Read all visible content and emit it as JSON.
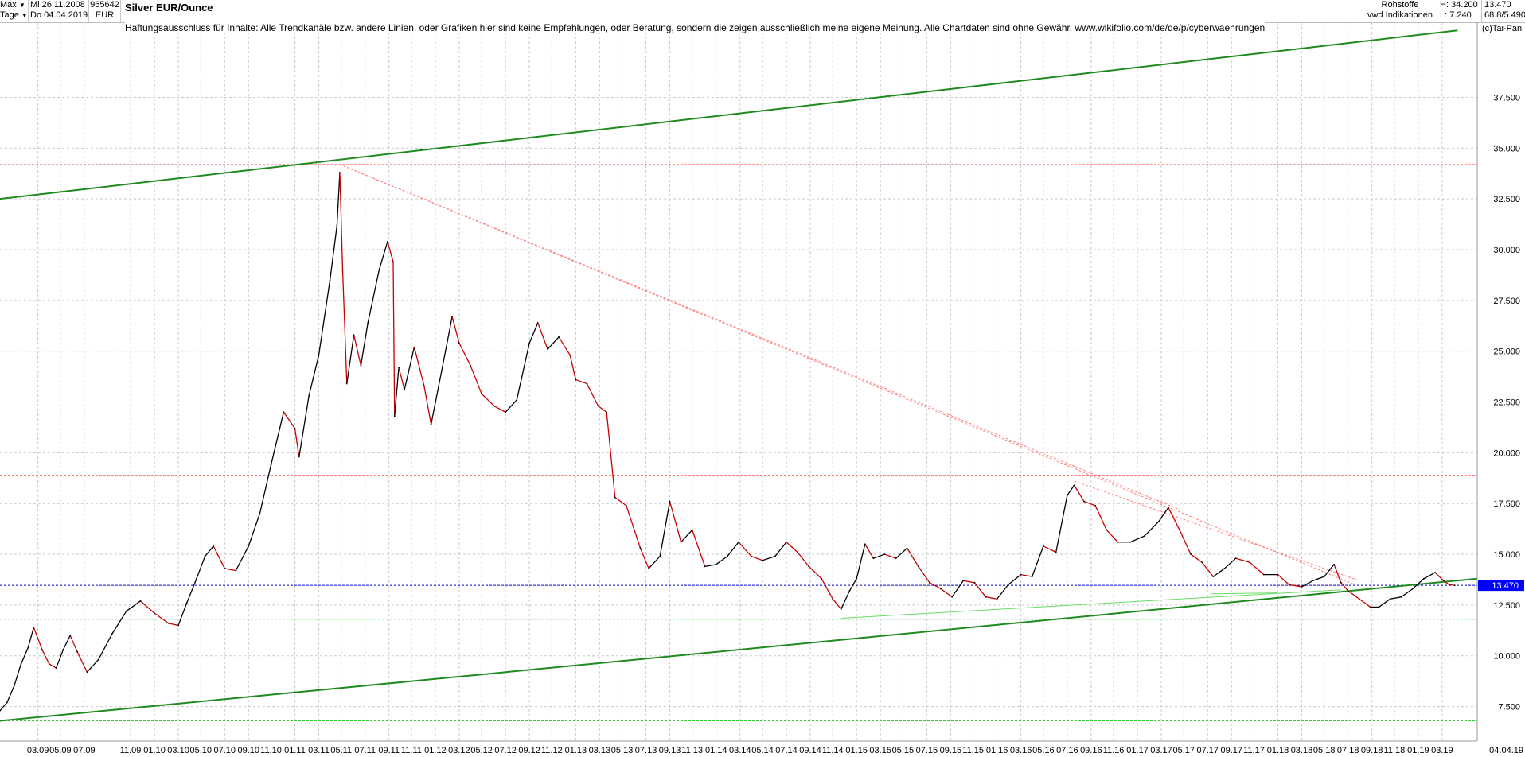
{
  "toolbar": {
    "range_select": "Max",
    "interval_select": "Tage",
    "date_start": "Mi 26.11.2008",
    "date_end": "Do 04.04.2019",
    "wkn": "965642",
    "currency": "EUR",
    "category": "Rohstoffe",
    "source": "vwd Indikationen",
    "high": "H: 34.200",
    "low": "L: 7.240",
    "last": "13.470",
    "performance": "68.8/5.490"
  },
  "header": {
    "title": "Silver EUR/Ounce",
    "disclaimer": "Haftungsausschluss für Inhalte: Alle Trendkanäle bzw. andere Linien, oder Grafiken hier sind keine Empfehlungen, oder Beratung, sondern die zeigen ausschließlich meine eigene Meinung. Alle Chartdaten sind ohne Gewähr.  www.wikifolio.com/de/de/p/cyberwaehrungen",
    "copyright": "(c)Tai-Pan"
  },
  "chart_data": {
    "type": "line",
    "title": "Silver EUR/Ounce",
    "ylim": [
      5.8,
      41.2
    ],
    "xlim": [
      2008.9,
      2019.42
    ],
    "grid": true,
    "y_ticks": [
      "7.500",
      "10.000",
      "12.500",
      "15.000",
      "17.500",
      "20.000",
      "22.500",
      "25.000",
      "27.500",
      "30.000",
      "32.500",
      "35.000",
      "37.500"
    ],
    "x_ticks": [
      {
        "x": 2009.17,
        "label": "03.09"
      },
      {
        "x": 2009.33,
        "label": "05.09"
      },
      {
        "x": 2009.5,
        "label": "07.09"
      },
      {
        "x": 2009.83,
        "label": "11.09"
      },
      {
        "x": 2010.0,
        "label": "01.10"
      },
      {
        "x": 2010.17,
        "label": "03.10"
      },
      {
        "x": 2010.33,
        "label": "05.10"
      },
      {
        "x": 2010.5,
        "label": "07.10"
      },
      {
        "x": 2010.67,
        "label": "09.10"
      },
      {
        "x": 2010.83,
        "label": "11.10"
      },
      {
        "x": 2011.0,
        "label": "01.11"
      },
      {
        "x": 2011.17,
        "label": "03.11"
      },
      {
        "x": 2011.33,
        "label": "05.11"
      },
      {
        "x": 2011.5,
        "label": "07.11"
      },
      {
        "x": 2011.67,
        "label": "09.11"
      },
      {
        "x": 2011.83,
        "label": "11.11"
      },
      {
        "x": 2012.0,
        "label": "01.12"
      },
      {
        "x": 2012.17,
        "label": "03.12"
      },
      {
        "x": 2012.33,
        "label": "05.12"
      },
      {
        "x": 2012.5,
        "label": "07.12"
      },
      {
        "x": 2012.67,
        "label": "09.12"
      },
      {
        "x": 2012.83,
        "label": "11.12"
      },
      {
        "x": 2013.0,
        "label": "01.13"
      },
      {
        "x": 2013.17,
        "label": "03.13"
      },
      {
        "x": 2013.33,
        "label": "05.13"
      },
      {
        "x": 2013.5,
        "label": "07.13"
      },
      {
        "x": 2013.67,
        "label": "09.13"
      },
      {
        "x": 2013.83,
        "label": "11.13"
      },
      {
        "x": 2014.0,
        "label": "01.14"
      },
      {
        "x": 2014.17,
        "label": "03.14"
      },
      {
        "x": 2014.33,
        "label": "05.14"
      },
      {
        "x": 2014.5,
        "label": "07.14"
      },
      {
        "x": 2014.67,
        "label": "09.14"
      },
      {
        "x": 2014.83,
        "label": "11.14"
      },
      {
        "x": 2015.0,
        "label": "01.15"
      },
      {
        "x": 2015.17,
        "label": "03.15"
      },
      {
        "x": 2015.33,
        "label": "05.15"
      },
      {
        "x": 2015.5,
        "label": "07.15"
      },
      {
        "x": 2015.67,
        "label": "09.15"
      },
      {
        "x": 2015.83,
        "label": "11.15"
      },
      {
        "x": 2016.0,
        "label": "01.16"
      },
      {
        "x": 2016.17,
        "label": "03.16"
      },
      {
        "x": 2016.33,
        "label": "05.16"
      },
      {
        "x": 2016.5,
        "label": "07.16"
      },
      {
        "x": 2016.67,
        "label": "09.16"
      },
      {
        "x": 2016.83,
        "label": "11.16"
      },
      {
        "x": 2017.0,
        "label": "01.17"
      },
      {
        "x": 2017.17,
        "label": "03.17"
      },
      {
        "x": 2017.33,
        "label": "05.17"
      },
      {
        "x": 2017.5,
        "label": "07.17"
      },
      {
        "x": 2017.67,
        "label": "09.17"
      },
      {
        "x": 2017.83,
        "label": "11.17"
      },
      {
        "x": 2018.0,
        "label": "01.18"
      },
      {
        "x": 2018.17,
        "label": "03.18"
      },
      {
        "x": 2018.33,
        "label": "05.18"
      },
      {
        "x": 2018.5,
        "label": "07.18"
      },
      {
        "x": 2018.67,
        "label": "09.18"
      },
      {
        "x": 2018.83,
        "label": "11.18"
      },
      {
        "x": 2019.0,
        "label": "01.19"
      },
      {
        "x": 2019.17,
        "label": "03.19"
      }
    ],
    "x_end_label": "04.04.19",
    "last_price_label": "13.470",
    "series": [
      {
        "values": [
          {
            "x": 2008.9,
            "y": 7.3
          },
          {
            "x": 2008.95,
            "y": 7.7
          },
          {
            "x": 2009.0,
            "y": 8.5
          },
          {
            "x": 2009.05,
            "y": 9.6
          },
          {
            "x": 2009.1,
            "y": 10.4
          },
          {
            "x": 2009.14,
            "y": 11.4
          },
          {
            "x": 2009.2,
            "y": 10.3
          },
          {
            "x": 2009.25,
            "y": 9.6
          },
          {
            "x": 2009.3,
            "y": 9.4
          },
          {
            "x": 2009.35,
            "y": 10.3
          },
          {
            "x": 2009.4,
            "y": 11.0
          },
          {
            "x": 2009.45,
            "y": 10.2
          },
          {
            "x": 2009.52,
            "y": 9.2
          },
          {
            "x": 2009.6,
            "y": 9.8
          },
          {
            "x": 2009.7,
            "y": 11.1
          },
          {
            "x": 2009.8,
            "y": 12.2
          },
          {
            "x": 2009.9,
            "y": 12.7
          },
          {
            "x": 2010.0,
            "y": 12.1
          },
          {
            "x": 2010.1,
            "y": 11.6
          },
          {
            "x": 2010.17,
            "y": 11.5
          },
          {
            "x": 2010.23,
            "y": 12.6
          },
          {
            "x": 2010.3,
            "y": 13.8
          },
          {
            "x": 2010.36,
            "y": 14.9
          },
          {
            "x": 2010.42,
            "y": 15.4
          },
          {
            "x": 2010.5,
            "y": 14.3
          },
          {
            "x": 2010.58,
            "y": 14.2
          },
          {
            "x": 2010.67,
            "y": 15.4
          },
          {
            "x": 2010.75,
            "y": 17.0
          },
          {
            "x": 2010.83,
            "y": 19.4
          },
          {
            "x": 2010.92,
            "y": 22.0
          },
          {
            "x": 2011.0,
            "y": 21.2
          },
          {
            "x": 2011.03,
            "y": 19.8
          },
          {
            "x": 2011.1,
            "y": 22.8
          },
          {
            "x": 2011.17,
            "y": 24.8
          },
          {
            "x": 2011.25,
            "y": 28.5
          },
          {
            "x": 2011.3,
            "y": 31.2
          },
          {
            "x": 2011.32,
            "y": 33.8
          },
          {
            "x": 2011.34,
            "y": 29.0
          },
          {
            "x": 2011.37,
            "y": 23.4
          },
          {
            "x": 2011.42,
            "y": 25.8
          },
          {
            "x": 2011.47,
            "y": 24.3
          },
          {
            "x": 2011.52,
            "y": 26.4
          },
          {
            "x": 2011.6,
            "y": 29.0
          },
          {
            "x": 2011.66,
            "y": 30.4
          },
          {
            "x": 2011.7,
            "y": 29.4
          },
          {
            "x": 2011.71,
            "y": 21.8
          },
          {
            "x": 2011.74,
            "y": 24.2
          },
          {
            "x": 2011.78,
            "y": 23.1
          },
          {
            "x": 2011.85,
            "y": 25.2
          },
          {
            "x": 2011.92,
            "y": 23.3
          },
          {
            "x": 2011.97,
            "y": 21.4
          },
          {
            "x": 2012.05,
            "y": 24.2
          },
          {
            "x": 2012.12,
            "y": 26.7
          },
          {
            "x": 2012.17,
            "y": 25.4
          },
          {
            "x": 2012.25,
            "y": 24.3
          },
          {
            "x": 2012.33,
            "y": 22.9
          },
          {
            "x": 2012.42,
            "y": 22.3
          },
          {
            "x": 2012.5,
            "y": 22.0
          },
          {
            "x": 2012.58,
            "y": 22.6
          },
          {
            "x": 2012.67,
            "y": 25.4
          },
          {
            "x": 2012.73,
            "y": 26.4
          },
          {
            "x": 2012.8,
            "y": 25.1
          },
          {
            "x": 2012.88,
            "y": 25.7
          },
          {
            "x": 2012.96,
            "y": 24.8
          },
          {
            "x": 2013.0,
            "y": 23.6
          },
          {
            "x": 2013.08,
            "y": 23.4
          },
          {
            "x": 2013.16,
            "y": 22.3
          },
          {
            "x": 2013.22,
            "y": 22.0
          },
          {
            "x": 2013.28,
            "y": 17.8
          },
          {
            "x": 2013.36,
            "y": 17.4
          },
          {
            "x": 2013.46,
            "y": 15.3
          },
          {
            "x": 2013.52,
            "y": 14.3
          },
          {
            "x": 2013.6,
            "y": 14.9
          },
          {
            "x": 2013.67,
            "y": 17.6
          },
          {
            "x": 2013.75,
            "y": 15.6
          },
          {
            "x": 2013.83,
            "y": 16.2
          },
          {
            "x": 2013.92,
            "y": 14.4
          },
          {
            "x": 2014.0,
            "y": 14.5
          },
          {
            "x": 2014.08,
            "y": 14.9
          },
          {
            "x": 2014.16,
            "y": 15.6
          },
          {
            "x": 2014.25,
            "y": 14.9
          },
          {
            "x": 2014.33,
            "y": 14.7
          },
          {
            "x": 2014.42,
            "y": 14.9
          },
          {
            "x": 2014.5,
            "y": 15.6
          },
          {
            "x": 2014.58,
            "y": 15.1
          },
          {
            "x": 2014.66,
            "y": 14.4
          },
          {
            "x": 2014.75,
            "y": 13.8
          },
          {
            "x": 2014.83,
            "y": 12.8
          },
          {
            "x": 2014.89,
            "y": 12.3
          },
          {
            "x": 2014.95,
            "y": 13.2
          },
          {
            "x": 2015.0,
            "y": 13.8
          },
          {
            "x": 2015.06,
            "y": 15.5
          },
          {
            "x": 2015.12,
            "y": 14.8
          },
          {
            "x": 2015.2,
            "y": 15.0
          },
          {
            "x": 2015.28,
            "y": 14.8
          },
          {
            "x": 2015.36,
            "y": 15.3
          },
          {
            "x": 2015.44,
            "y": 14.4
          },
          {
            "x": 2015.52,
            "y": 13.6
          },
          {
            "x": 2015.6,
            "y": 13.3
          },
          {
            "x": 2015.68,
            "y": 12.9
          },
          {
            "x": 2015.76,
            "y": 13.7
          },
          {
            "x": 2015.84,
            "y": 13.6
          },
          {
            "x": 2015.92,
            "y": 12.9
          },
          {
            "x": 2016.0,
            "y": 12.8
          },
          {
            "x": 2016.08,
            "y": 13.5
          },
          {
            "x": 2016.17,
            "y": 14.0
          },
          {
            "x": 2016.25,
            "y": 13.9
          },
          {
            "x": 2016.33,
            "y": 15.4
          },
          {
            "x": 2016.42,
            "y": 15.1
          },
          {
            "x": 2016.5,
            "y": 17.9
          },
          {
            "x": 2016.55,
            "y": 18.4
          },
          {
            "x": 2016.62,
            "y": 17.6
          },
          {
            "x": 2016.7,
            "y": 17.4
          },
          {
            "x": 2016.78,
            "y": 16.2
          },
          {
            "x": 2016.86,
            "y": 15.6
          },
          {
            "x": 2016.95,
            "y": 15.6
          },
          {
            "x": 2017.05,
            "y": 15.9
          },
          {
            "x": 2017.15,
            "y": 16.6
          },
          {
            "x": 2017.22,
            "y": 17.3
          },
          {
            "x": 2017.3,
            "y": 16.2
          },
          {
            "x": 2017.38,
            "y": 15.0
          },
          {
            "x": 2017.46,
            "y": 14.6
          },
          {
            "x": 2017.54,
            "y": 13.9
          },
          {
            "x": 2017.62,
            "y": 14.3
          },
          {
            "x": 2017.7,
            "y": 14.8
          },
          {
            "x": 2017.8,
            "y": 14.6
          },
          {
            "x": 2017.9,
            "y": 14.0
          },
          {
            "x": 2018.0,
            "y": 14.0
          },
          {
            "x": 2018.08,
            "y": 13.5
          },
          {
            "x": 2018.17,
            "y": 13.4
          },
          {
            "x": 2018.25,
            "y": 13.7
          },
          {
            "x": 2018.33,
            "y": 13.9
          },
          {
            "x": 2018.4,
            "y": 14.5
          },
          {
            "x": 2018.45,
            "y": 13.6
          },
          {
            "x": 2018.5,
            "y": 13.2
          },
          {
            "x": 2018.58,
            "y": 12.8
          },
          {
            "x": 2018.66,
            "y": 12.4
          },
          {
            "x": 2018.72,
            "y": 12.4
          },
          {
            "x": 2018.8,
            "y": 12.8
          },
          {
            "x": 2018.88,
            "y": 12.9
          },
          {
            "x": 2018.96,
            "y": 13.3
          },
          {
            "x": 2019.04,
            "y": 13.8
          },
          {
            "x": 2019.12,
            "y": 14.1
          },
          {
            "x": 2019.18,
            "y": 13.7
          },
          {
            "x": 2019.22,
            "y": 13.5
          },
          {
            "x": 2019.26,
            "y": 13.47
          }
        ]
      }
    ],
    "trendlines": [
      {
        "style": "channel",
        "color": "#1f8b1f",
        "from": {
          "x": 2008.9,
          "y": 32.5
        },
        "to": {
          "x": 2019.28,
          "y": 40.8
        }
      },
      {
        "style": "channel",
        "color": "#1f8b1f",
        "from": {
          "x": 2008.9,
          "y": 6.8
        },
        "to": {
          "x": 2019.42,
          "y": 13.8
        }
      },
      {
        "style": "support",
        "color": "#66dd66",
        "from": {
          "x": 2014.89,
          "y": 11.85
        },
        "to": {
          "x": 2018.45,
          "y": 13.25
        }
      },
      {
        "style": "support",
        "color": "#66dd66",
        "from": {
          "x": 2017.52,
          "y": 13.05
        },
        "to": {
          "x": 2018.0,
          "y": 13.1
        }
      },
      {
        "style": "resistance",
        "color": "#ff8080",
        "from": {
          "x": 2011.32,
          "y": 34.2
        },
        "to": {
          "x": 2017.3,
          "y": 17.2
        }
      },
      {
        "style": "resistance",
        "color": "#ff8080",
        "from": {
          "x": 2011.32,
          "y": 34.2
        },
        "to": {
          "x": 2018.55,
          "y": 13.5
        }
      },
      {
        "style": "resistance",
        "color": "#ff8080",
        "from": {
          "x": 2016.55,
          "y": 18.6
        },
        "to": {
          "x": 2018.58,
          "y": 13.7
        }
      }
    ],
    "hlines": [
      {
        "y": 34.2,
        "color": "#ff8080"
      },
      {
        "y": 18.9,
        "color": "#ff8080"
      },
      {
        "y": 13.47,
        "color": "#0000cc"
      },
      {
        "y": 11.8,
        "color": "#33cc33"
      },
      {
        "y": 6.8,
        "color": "#33cc33"
      }
    ],
    "colors": {
      "up": "#000000",
      "down": "#cc0000",
      "channel": "#1f8b1f",
      "last_price_bg": "#0000ff"
    }
  }
}
